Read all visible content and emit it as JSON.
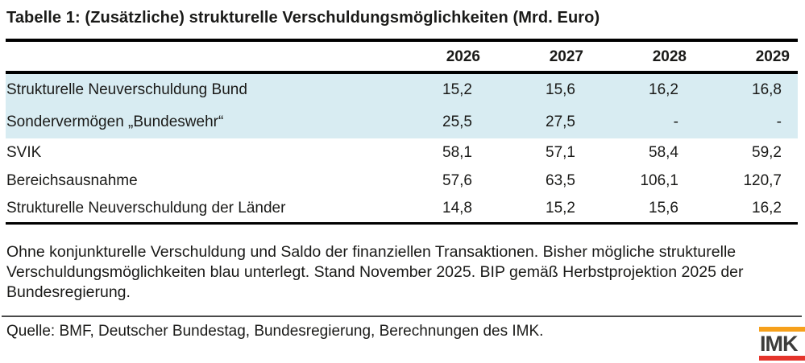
{
  "chart_data": {
    "type": "table",
    "title": "Tabelle 1: (Zusätzliche) strukturelle Verschuldungsmöglichkeiten (Mrd. Euro)",
    "columns": [
      "2026",
      "2027",
      "2028",
      "2029"
    ],
    "rows": [
      {
        "label": "Strukturelle Neuverschuldung Bund",
        "values": [
          "15,2",
          "15,6",
          "16,2",
          "16,8"
        ],
        "highlighted": true
      },
      {
        "label": "Sondervermögen „Bundeswehr“",
        "values": [
          "25,5",
          "27,5",
          "-",
          "-"
        ],
        "highlighted": true
      },
      {
        "label": "SVIK",
        "values": [
          "58,1",
          "57,1",
          "58,4",
          "59,2"
        ],
        "highlighted": false
      },
      {
        "label": "Bereichsausnahme",
        "values": [
          "57,6",
          "63,5",
          "106,1",
          "120,7"
        ],
        "highlighted": false
      },
      {
        "label": "Strukturelle Neuverschuldung der Länder",
        "values": [
          "14,8",
          "15,2",
          "15,6",
          "16,2"
        ],
        "highlighted": false
      }
    ],
    "legend_note": "Bisher mögliche strukturelle Verschuldungsmöglichkeiten blau unterlegt"
  },
  "footnote": "Ohne konjunkturelle Verschuldung und Saldo der finanziellen Transaktionen. Bisher mögliche strukturelle Verschuldungsmöglichkeiten blau unterlegt. Stand November 2025. BIP gemäß Herbstprojektion 2025 der Bundesregierung.",
  "source_line": "Quelle: BMF, Deutscher Bundestag, Bundesregierung, Berechnungen des IMK.",
  "logo": {
    "text": "IMK"
  },
  "colors": {
    "row_highlight": "#d8ecf2",
    "logo_top_bar": "#f6a01b",
    "logo_bottom_bar": "#e5342b",
    "logo_text": "#3c3c3b"
  }
}
